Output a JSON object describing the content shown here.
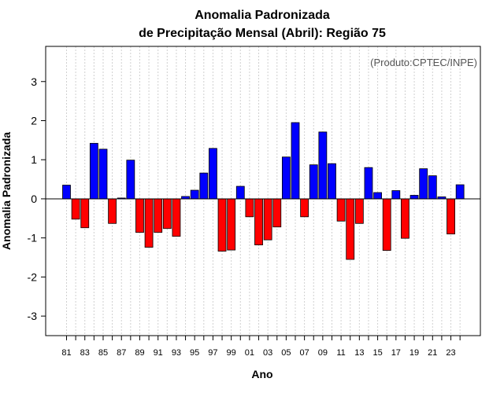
{
  "chart_data": {
    "type": "bar",
    "title_line1": "Anomalia Padronizada",
    "title_line2": "de Precipitação Mensal (Abril): Região 75",
    "xlabel": "Ano",
    "ylabel": "Anomalia Padronizada",
    "credit": "(Produto:CPTEC/INPE)",
    "ylim": [
      -3.5,
      3.9
    ],
    "yticks": [
      -3,
      -2,
      -1,
      0,
      1,
      2,
      3
    ],
    "ytick_labels": [
      "-3",
      "-2",
      "-1",
      "0",
      "1",
      "2",
      "3"
    ],
    "grid": true,
    "positive_color": "#0000ff",
    "negative_color": "#ff0000",
    "categories": [
      "81",
      "82",
      "83",
      "84",
      "85",
      "86",
      "87",
      "88",
      "89",
      "90",
      "91",
      "92",
      "93",
      "94",
      "95",
      "96",
      "97",
      "98",
      "99",
      "00",
      "01",
      "02",
      "03",
      "04",
      "05",
      "06",
      "07",
      "08",
      "09",
      "10",
      "11",
      "12",
      "13",
      "14",
      "15",
      "16",
      "17",
      "18",
      "19",
      "20",
      "21",
      "22",
      "23",
      "24"
    ],
    "xtick_labels": [
      "81",
      "83",
      "85",
      "87",
      "89",
      "91",
      "93",
      "95",
      "97",
      "99",
      "01",
      "03",
      "05",
      "07",
      "09",
      "11",
      "13",
      "15",
      "17",
      "19",
      "21",
      "23"
    ],
    "values": [
      0.35,
      -0.52,
      -0.74,
      1.42,
      1.27,
      -0.63,
      0.02,
      0.99,
      -0.86,
      -1.24,
      -0.86,
      -0.76,
      -0.96,
      0.06,
      0.22,
      0.66,
      1.29,
      -1.34,
      -1.31,
      0.32,
      -0.46,
      -1.18,
      -1.05,
      -0.72,
      1.07,
      1.95,
      -0.46,
      0.87,
      1.71,
      0.9,
      -0.57,
      -1.55,
      -0.63,
      0.8,
      0.16,
      -1.32,
      0.21,
      -1.01,
      0.09,
      0.77,
      0.59,
      0.05,
      -0.9,
      0.36
    ]
  }
}
